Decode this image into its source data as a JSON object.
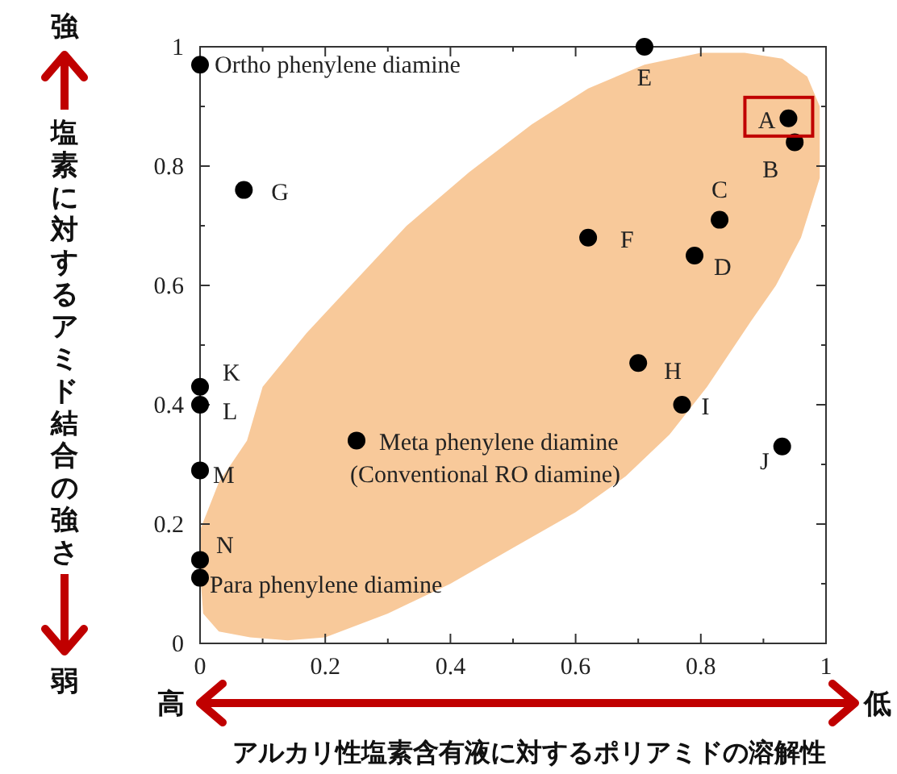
{
  "chart_data": {
    "type": "scatter",
    "xlabel": "アルカリ性塩素含有液に対するポリアミドの溶解性",
    "ylabel": "塩素に対するアミド結合の強さ",
    "xlim": [
      0,
      1
    ],
    "ylim": [
      0,
      1
    ],
    "xticks": [
      0,
      0.2,
      0.4,
      0.6,
      0.8,
      1
    ],
    "yticks": [
      0,
      0.2,
      0.4,
      0.6,
      0.8,
      1
    ],
    "grid": false,
    "series": [
      {
        "type": "area",
        "color": "#f8c99a",
        "x": [
          0.8,
          0.87,
          0.93,
          0.97,
          0.99,
          0.99,
          0.96,
          0.92,
          0.88,
          0.81,
          0.75,
          0.68,
          0.6,
          0.5,
          0.4,
          0.3,
          0.2,
          0.14,
          0.08,
          0.03,
          0.005,
          0,
          0,
          0.03,
          0.075,
          0.1,
          0.17,
          0.25,
          0.33,
          0.43,
          0.53,
          0.62,
          0.71
        ],
        "values": [
          0.99,
          0.99,
          0.98,
          0.95,
          0.9,
          0.78,
          0.68,
          0.6,
          0.54,
          0.43,
          0.35,
          0.28,
          0.22,
          0.16,
          0.1,
          0.05,
          0.01,
          0.005,
          0.01,
          0.02,
          0.05,
          0.12,
          0.19,
          0.27,
          0.34,
          0.43,
          0.52,
          0.61,
          0.7,
          0.79,
          0.87,
          0.93,
          0.97
        ]
      },
      {
        "color": "#000000",
        "marker": "circle",
        "x": [
          0,
          0.71,
          0.94,
          0.95,
          0.83,
          0.62,
          0.79,
          0.07,
          0.7,
          0.77,
          0.93,
          0.25,
          0,
          0,
          0,
          0,
          0
        ],
        "values": [
          0.97,
          1.0,
          0.88,
          0.84,
          0.71,
          0.68,
          0.65,
          0.76,
          0.47,
          0.4,
          0.33,
          0.34,
          0.43,
          0.4,
          0.29,
          0.14,
          0.11
        ]
      }
    ],
    "annotations": [
      {
        "text": "Ortho phenylene diamine",
        "x": 0,
        "y": 0.97
      },
      {
        "text": "E",
        "x": 0.71,
        "y": 1.0
      },
      {
        "text": "A",
        "x": 0.94,
        "y": 0.88
      },
      {
        "text": "B",
        "x": 0.95,
        "y": 0.84
      },
      {
        "text": "C",
        "x": 0.83,
        "y": 0.71
      },
      {
        "text": "F",
        "x": 0.62,
        "y": 0.68
      },
      {
        "text": "D",
        "x": 0.79,
        "y": 0.65
      },
      {
        "text": "G",
        "x": 0.07,
        "y": 0.76
      },
      {
        "text": "H",
        "x": 0.7,
        "y": 0.47
      },
      {
        "text": "I",
        "x": 0.77,
        "y": 0.4
      },
      {
        "text": "J",
        "x": 0.93,
        "y": 0.33
      },
      {
        "text": "Meta phenylene diamine\n(Conventional RO diamine)",
        "x": 0.25,
        "y": 0.34
      },
      {
        "text": "K",
        "x": 0,
        "y": 0.43
      },
      {
        "text": "L",
        "x": 0,
        "y": 0.4
      },
      {
        "text": "M",
        "x": 0,
        "y": 0.29
      },
      {
        "text": "N",
        "x": 0,
        "y": 0.14
      },
      {
        "text": "Para phenylene diamine",
        "x": 0,
        "y": 0.11
      },
      "強",
      "弱",
      "高",
      "低"
    ]
  }
}
